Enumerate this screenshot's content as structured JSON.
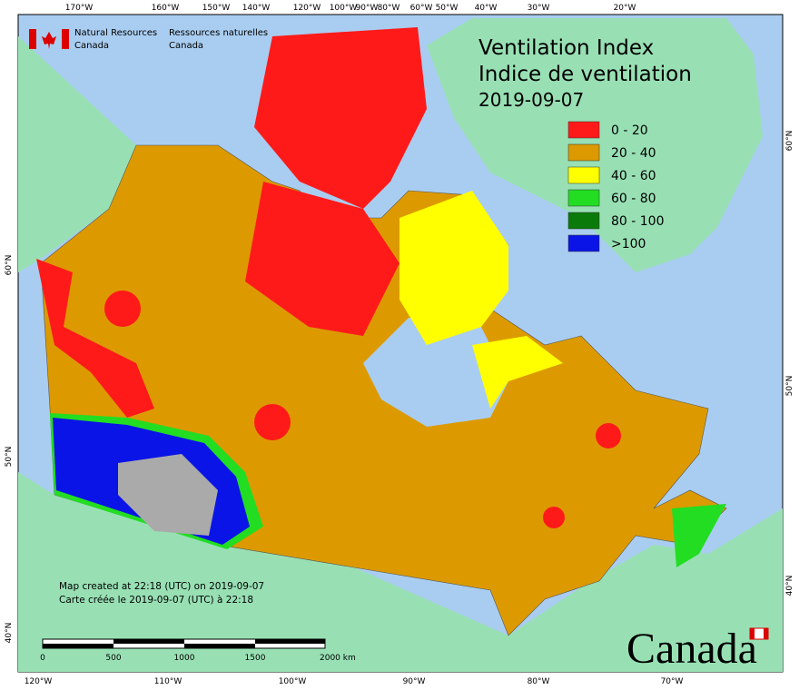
{
  "header": {
    "agency_en": "Natural Resources",
    "country_en": "Canada",
    "agency_fr": "Ressources naturelles",
    "country_fr": "Canada"
  },
  "title": {
    "line1": "Ventilation Index",
    "line2": "Indice de ventilation",
    "date": "2019-09-07"
  },
  "legend": [
    {
      "label": "0 - 20",
      "color": "#ff1a1a"
    },
    {
      "label": "20 - 40",
      "color": "#dc9a00"
    },
    {
      "label": "40 - 60",
      "color": "#ffff00"
    },
    {
      "label": "60 - 80",
      "color": "#22dd22"
    },
    {
      "label": "80 - 100",
      "color": "#0a7a0a"
    },
    {
      "label": ">100",
      "color": "#0a14e6"
    }
  ],
  "notes": {
    "line1": "Map created at 22:18 (UTC) on 2019-09-07",
    "line2": "Carte créée le 2019-09-07 (UTC) à 22:18"
  },
  "scale": [
    "0",
    "500",
    "1000",
    "1500",
    "2000 km"
  ],
  "graticule": {
    "top": [
      "170°W",
      "160°W",
      "150°W",
      "140°W",
      "120°W",
      "100°W",
      "90°W",
      "80°W",
      "60°W",
      "50°W",
      "40°W",
      "30°W",
      "20°W"
    ],
    "bottom": [
      "120°W",
      "110°W",
      "100°W",
      "90°W",
      "80°W",
      "70°W"
    ],
    "left": [
      "60°N",
      "50°N",
      "40°N"
    ],
    "right": [
      "60°N",
      "50°N",
      "40°N"
    ]
  },
  "wordmark": "Canada"
}
